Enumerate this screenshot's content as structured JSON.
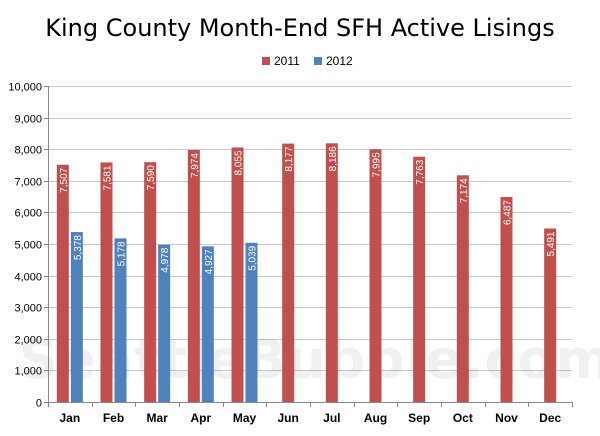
{
  "chart_data": {
    "type": "bar",
    "title": "King County Month-End SFH Active Lisings",
    "xlabel": "",
    "ylabel": "",
    "ylim": [
      0,
      10000
    ],
    "yticks": [
      0,
      1000,
      2000,
      3000,
      4000,
      5000,
      6000,
      7000,
      8000,
      9000,
      10000
    ],
    "ytick_labels": [
      "0",
      "1,000",
      "2,000",
      "3,000",
      "4,000",
      "5,000",
      "6,000",
      "7,000",
      "8,000",
      "9,000",
      "10,000"
    ],
    "grid": true,
    "legend_position": "top-center",
    "categories": [
      "Jan",
      "Feb",
      "Mar",
      "Apr",
      "May",
      "Jun",
      "Jul",
      "Aug",
      "Sep",
      "Oct",
      "Nov",
      "Dec"
    ],
    "series": [
      {
        "name": "2011",
        "color": "#c0504d",
        "values": [
          7507,
          7581,
          7590,
          7974,
          8055,
          8177,
          8186,
          7995,
          7763,
          7174,
          6487,
          5491
        ],
        "labels": [
          "7,507",
          "7,581",
          "7,590",
          "7,974",
          "8,055",
          "8,177",
          "8,186",
          "7,995",
          "7,763",
          "7,174",
          "6,487",
          "5,491"
        ]
      },
      {
        "name": "2012",
        "color": "#4f81bd",
        "values": [
          5378,
          5178,
          4978,
          4927,
          5039,
          null,
          null,
          null,
          null,
          null,
          null,
          null
        ],
        "labels": [
          "5,378",
          "5,178",
          "4,978",
          "4,927",
          "5,039",
          null,
          null,
          null,
          null,
          null,
          null,
          null
        ]
      }
    ]
  },
  "watermark": "SeattleBubble.com"
}
